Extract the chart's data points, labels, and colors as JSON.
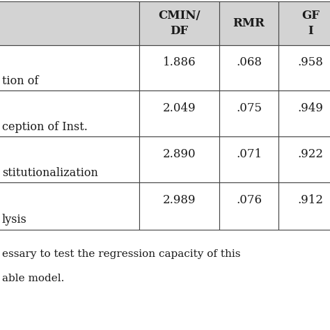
{
  "header_cols": [
    "CMIN/\nDF",
    "RMR",
    "GF\nI"
  ],
  "row_labels": [
    "tion of",
    "ception of Inst.",
    "stitutionalization",
    "lysis"
  ],
  "values": [
    [
      "1.886",
      ".068",
      ".958"
    ],
    [
      "2.049",
      ".075",
      ".949"
    ],
    [
      "2.890",
      ".071",
      ".922"
    ],
    [
      "2.989",
      ".076",
      ".912"
    ]
  ],
  "header_bg": "#d3d3d3",
  "cell_bg": "#ffffff",
  "text_color": "#1a1a1a",
  "footer_line1": "essary to test the regression capacity of this",
  "footer_line2": "able model.",
  "figsize": [
    4.74,
    4.74
  ],
  "dpi": 100
}
